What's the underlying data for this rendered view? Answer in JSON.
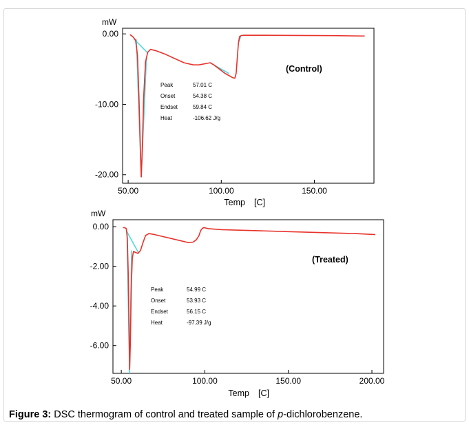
{
  "chart_data": [
    {
      "type": "line",
      "ylabel": "mW",
      "xlabel": "Temp",
      "xunit": "[C]",
      "annotation": "(Control)",
      "xlim": [
        47,
        182
      ],
      "ylim": [
        -21.2,
        0.8
      ],
      "xticks": [
        50,
        100,
        150
      ],
      "xtick_labels": [
        "50.00",
        "100.00",
        "150.00"
      ],
      "yticks": [
        0,
        -10,
        -20
      ],
      "ytick_labels": [
        "0.00",
        "-10.00",
        "-20.00"
      ],
      "colors": {
        "curve": "#e8322b",
        "baseline": "#4fd8e0"
      },
      "series": [
        {
          "x": [
            51,
            52.5,
            54,
            55,
            55.8,
            56.6,
            57.01,
            57.6,
            58.3,
            59.3,
            60.5,
            62,
            65,
            70,
            75,
            80,
            85,
            88,
            92,
            94,
            96,
            99,
            102,
            104,
            106,
            107.3,
            108,
            108.6,
            109.2,
            109.8,
            110.6,
            112,
            120,
            140,
            160,
            177
          ],
          "y": [
            -0.1,
            -0.4,
            -0.9,
            -3,
            -9,
            -17,
            -20.3,
            -16,
            -9,
            -4,
            -2.6,
            -2.2,
            -2.4,
            -2.9,
            -3.5,
            -4.1,
            -4.4,
            -4.4,
            -4.2,
            -4.1,
            -4.4,
            -5.0,
            -5.6,
            -5.9,
            -6.2,
            -6.3,
            -5.6,
            -3.5,
            -1.3,
            -0.4,
            -0.25,
            -0.2,
            -0.2,
            -0.22,
            -0.25,
            -0.3
          ]
        }
      ],
      "baselines": [
        {
          "x": [
            53,
            60.5
          ],
          "y": [
            -0.7,
            -2.7
          ]
        },
        {
          "x": [
            54.38,
            57.01
          ],
          "y": [
            -0.8,
            -20.3
          ]
        },
        {
          "x": [
            59.84,
            57.01
          ],
          "y": [
            -3.2,
            -20.3
          ]
        },
        {
          "x": [
            94,
            104
          ],
          "y": [
            -4.1,
            -5.6
          ]
        },
        {
          "x": [
            109.2,
            110.5
          ],
          "y": [
            -1.3,
            -0.3
          ]
        }
      ],
      "results": [
        {
          "label": "Peak",
          "value": "57.01 C"
        },
        {
          "label": "Onset",
          "value": "54.38 C"
        },
        {
          "label": "Endset",
          "value": "59.84 C"
        },
        {
          "label": "Heat",
          "value": "-106.62 J/g"
        }
      ]
    },
    {
      "type": "line",
      "ylabel": "mW",
      "xlabel": "Temp",
      "xunit": "[C]",
      "annotation": "(Treated)",
      "xlim": [
        45,
        207
      ],
      "ylim": [
        -7.4,
        0.35
      ],
      "xticks": [
        50,
        100,
        150,
        200
      ],
      "xtick_labels": [
        "50.00",
        "100.00",
        "150.00",
        "200.00"
      ],
      "yticks": [
        0,
        -2,
        -4,
        -6
      ],
      "ytick_labels": [
        "0.00",
        "-2.00",
        "-4.00",
        "-6.00"
      ],
      "colors": {
        "curve": "#e8322b",
        "baseline": "#4fd8e0"
      },
      "series": [
        {
          "x": [
            51,
            52,
            53,
            53.6,
            54.2,
            54.6,
            54.99,
            55.4,
            56,
            56.6,
            57.3,
            58.5,
            60,
            61.5,
            63,
            64.5,
            66.5,
            70,
            75,
            80,
            85,
            90,
            93,
            95,
            96.5,
            97.5,
            98.5,
            99.5,
            102,
            110,
            130,
            150,
            170,
            190,
            202
          ],
          "y": [
            -0.05,
            -0.05,
            -0.1,
            -0.6,
            -2.5,
            -5,
            -7.2,
            -6,
            -3,
            -1.6,
            -1.25,
            -1.3,
            -1.35,
            -1.2,
            -0.8,
            -0.45,
            -0.35,
            -0.4,
            -0.5,
            -0.6,
            -0.7,
            -0.8,
            -0.78,
            -0.65,
            -0.45,
            -0.2,
            -0.08,
            -0.05,
            -0.1,
            -0.15,
            -0.2,
            -0.25,
            -0.3,
            -0.35,
            -0.4
          ]
        }
      ],
      "baselines": [
        {
          "x": [
            53,
            60.5
          ],
          "y": [
            -0.2,
            -1.35
          ]
        },
        {
          "x": [
            53.4,
            54.99
          ],
          "y": [
            -0.3,
            -7.4
          ]
        },
        {
          "x": [
            56.15,
            54.99
          ],
          "y": [
            -1.2,
            -7.4
          ]
        }
      ],
      "results": [
        {
          "label": "Peak",
          "value": "54.99 C"
        },
        {
          "label": "Onset",
          "value": "53.93 C"
        },
        {
          "label": "Endset",
          "value": "56.15 C"
        },
        {
          "label": "Heat",
          "value": "-97.39 J/g"
        }
      ]
    }
  ],
  "caption": {
    "label": "Figure 3:",
    "text_before": " DSC thermogram of control and treated sample of ",
    "italic": "p",
    "text_after": "-dichlorobenzene."
  }
}
